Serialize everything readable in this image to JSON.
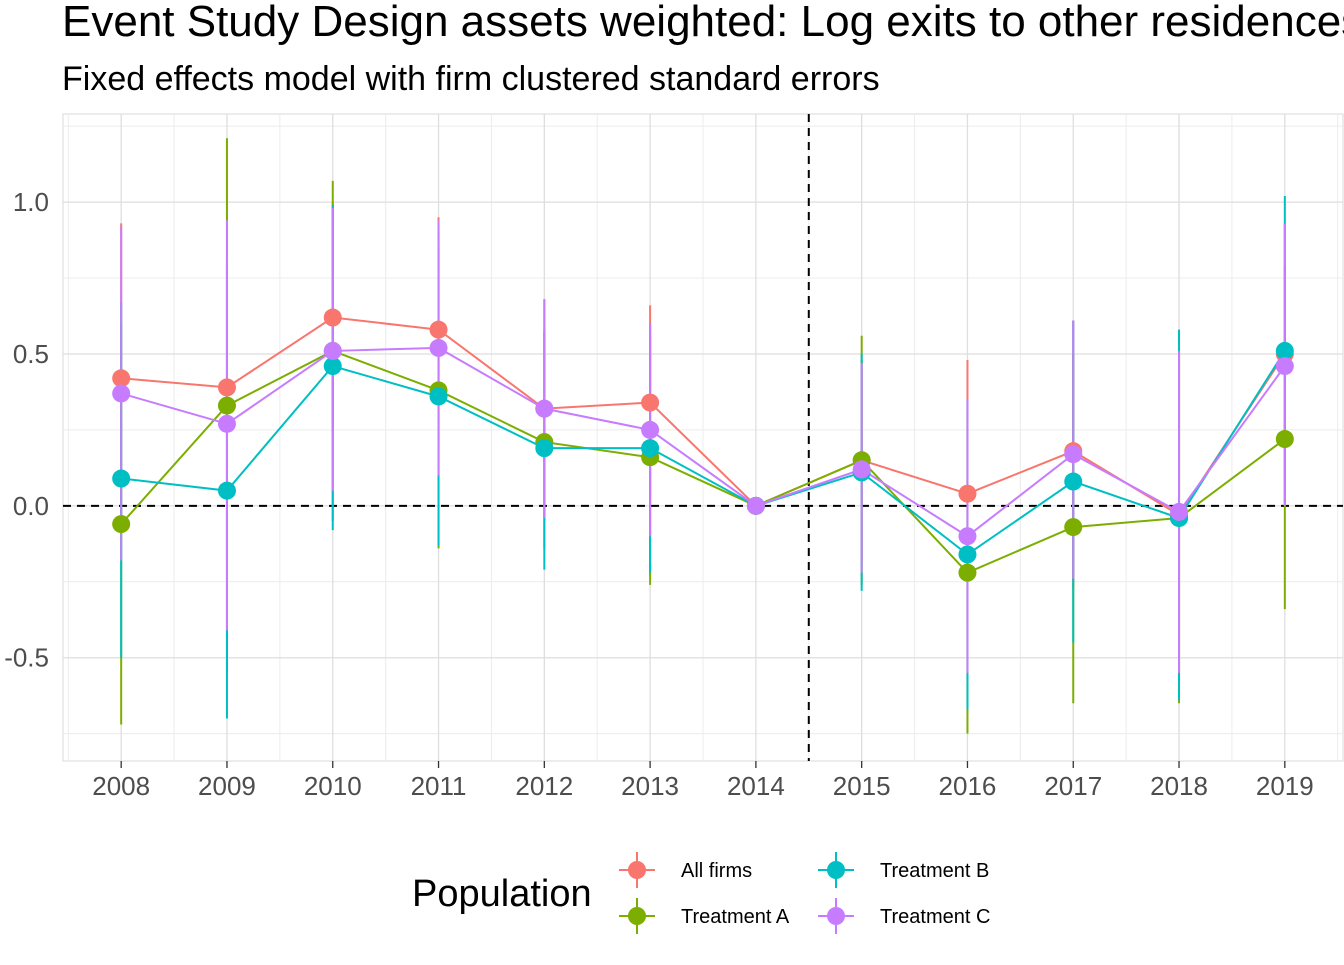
{
  "chart_data": {
    "type": "line",
    "title": "Event Study Design assets weighted: Log exits to other residences",
    "subtitle": "Fixed effects model with firm clustered standard errors",
    "xlabel": "",
    "ylabel": "",
    "x": [
      2008,
      2009,
      2010,
      2011,
      2012,
      2013,
      2014,
      2015,
      2016,
      2017,
      2018,
      2019
    ],
    "xlim": [
      2007.45,
      2019.55
    ],
    "ylim": [
      -0.84,
      1.29
    ],
    "y_ticks": [
      -0.5,
      0.0,
      0.5,
      1.0
    ],
    "y_tick_labels": [
      "-0.5",
      "0.0",
      "0.5",
      "1.0"
    ],
    "x_tick_labels": [
      "2008",
      "2009",
      "2010",
      "2011",
      "2012",
      "2013",
      "2014",
      "2015",
      "2016",
      "2017",
      "2018",
      "2019"
    ],
    "grid": true,
    "reference_lines": {
      "horizontal_y": 0.0,
      "vertical_x": 2014.5,
      "style": "dashed"
    },
    "legend": {
      "title": "Population",
      "position": "bottom",
      "columns": 2
    },
    "series": [
      {
        "name": "All firms",
        "color": "#F8766D",
        "values": [
          0.42,
          0.39,
          0.62,
          0.58,
          0.32,
          0.34,
          0.0,
          0.15,
          0.04,
          0.18,
          -0.03,
          0.5
        ],
        "lower": [
          -0.09,
          -0.17,
          0.24,
          0.2,
          -0.04,
          0.02,
          0.0,
          -0.18,
          -0.39,
          -0.27,
          -0.58,
          0.08
        ],
        "upper": [
          0.93,
          0.95,
          1.0,
          0.95,
          0.68,
          0.66,
          0.0,
          0.48,
          0.48,
          0.61,
          0.52,
          0.93
        ]
      },
      {
        "name": "Treatment A",
        "color": "#7CAE00",
        "values": [
          -0.06,
          0.33,
          0.51,
          0.38,
          0.21,
          0.16,
          0.0,
          0.15,
          -0.22,
          -0.07,
          -0.04,
          0.22
        ],
        "lower": [
          -0.72,
          -0.55,
          -0.05,
          -0.14,
          -0.14,
          -0.26,
          0.0,
          -0.26,
          -0.75,
          -0.65,
          -0.65,
          -0.34
        ],
        "upper": [
          0.6,
          1.21,
          1.07,
          0.9,
          0.57,
          0.58,
          0.0,
          0.56,
          0.31,
          0.5,
          0.57,
          0.79
        ]
      },
      {
        "name": "Treatment B",
        "color": "#00BFC4",
        "values": [
          0.09,
          0.05,
          0.46,
          0.36,
          0.19,
          0.19,
          0.0,
          0.11,
          -0.16,
          0.08,
          -0.04,
          0.51
        ],
        "lower": [
          -0.5,
          -0.7,
          -0.08,
          -0.13,
          -0.21,
          -0.22,
          0.0,
          -0.28,
          -0.67,
          -0.45,
          -0.64,
          0.01
        ],
        "upper": [
          0.67,
          0.8,
          0.99,
          0.85,
          0.58,
          0.6,
          0.0,
          0.5,
          0.35,
          0.61,
          0.58,
          1.02
        ]
      },
      {
        "name": "Treatment C",
        "color": "#C77CFF",
        "values": [
          0.37,
          0.27,
          0.51,
          0.52,
          0.32,
          0.25,
          0.0,
          0.12,
          -0.1,
          0.17,
          -0.02,
          0.46
        ],
        "lower": [
          -0.18,
          -0.41,
          0.05,
          0.1,
          -0.04,
          -0.1,
          0.0,
          -0.22,
          -0.55,
          -0.24,
          -0.55,
          0.0
        ],
        "upper": [
          0.92,
          0.94,
          0.98,
          0.94,
          0.68,
          0.6,
          0.0,
          0.47,
          0.35,
          0.61,
          0.51,
          0.93
        ]
      }
    ]
  }
}
